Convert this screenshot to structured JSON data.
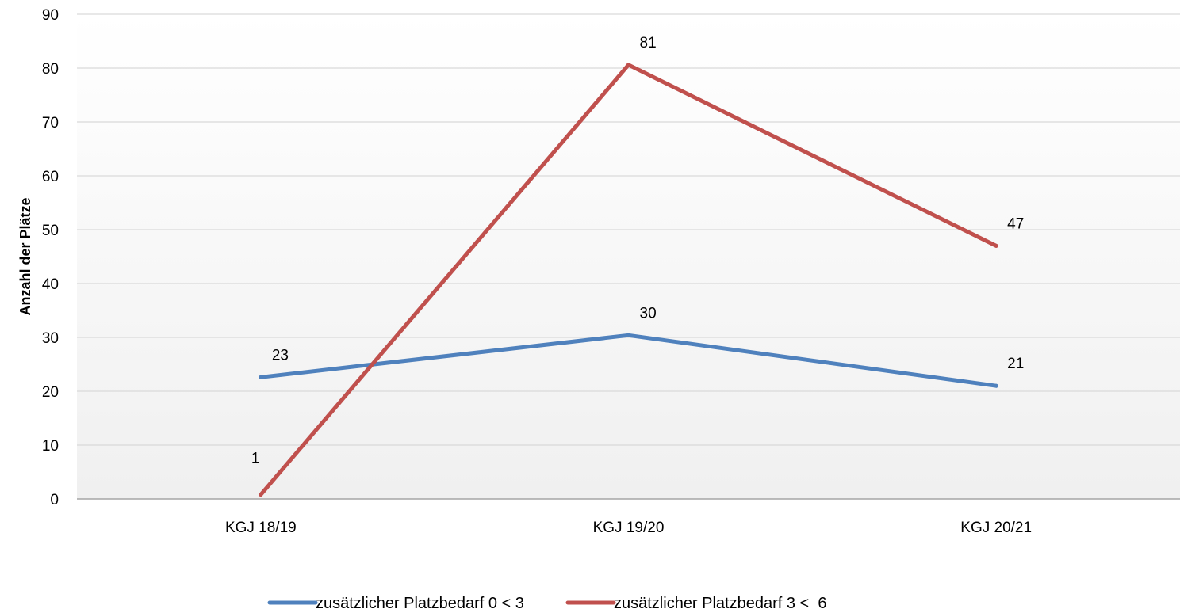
{
  "chart_data": {
    "type": "line",
    "title": "",
    "xlabel": "",
    "ylabel": "Anzahl der Plätze",
    "ylim": [
      0,
      90
    ],
    "ytick_step": 10,
    "yticks": [
      "0",
      "10",
      "20",
      "30",
      "40",
      "50",
      "60",
      "70",
      "80",
      "90"
    ],
    "grid": true,
    "legend_position": "bottom",
    "categories": [
      "KGJ 18/19",
      "KGJ 19/20",
      "KGJ 20/21"
    ],
    "series": [
      {
        "name": "zusätzlicher Platzbedarf 0 < 3",
        "color": "#4F81BD",
        "values": [
          22.6,
          30.4,
          21
        ],
        "labels": [
          "23",
          "30",
          "21"
        ]
      },
      {
        "name": "zusätzlicher Platzbedarf 3 <  6",
        "color": "#C0504D",
        "values": [
          0.8,
          80.6,
          47
        ],
        "labels": [
          "1",
          "81",
          "47"
        ]
      }
    ]
  }
}
